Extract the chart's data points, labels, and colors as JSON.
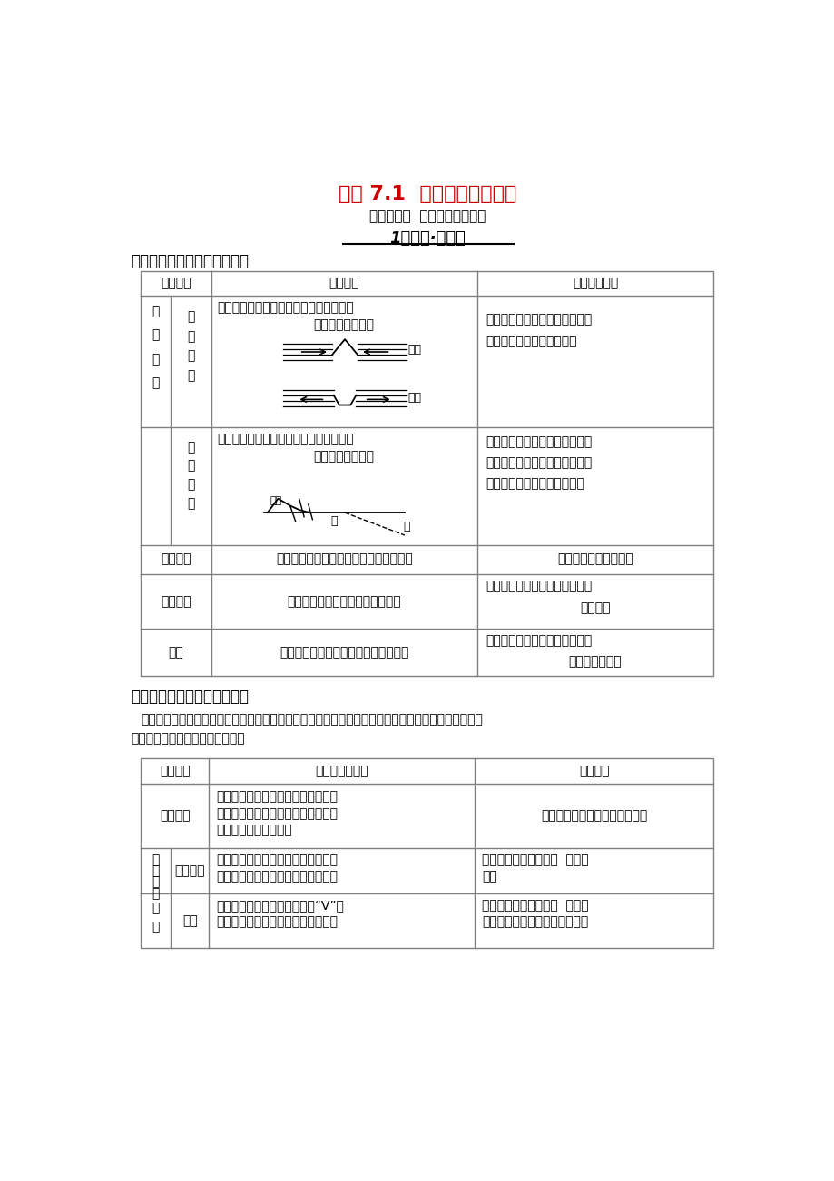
{
  "title": "专题 7.1  内外力作用与地貌",
  "subtitle": "核心突破一  内外力作用与地貌",
  "section_title": "1理考点·打基础",
  "point1_title": "考点一、主要内力作用与地貌",
  "point2_title": "考点二、主要外力作用与地貌",
  "bg_color": "#ffffff",
  "table_border_color": "#808080",
  "title_color": "#cc0000",
  "text_color": "#000000"
}
